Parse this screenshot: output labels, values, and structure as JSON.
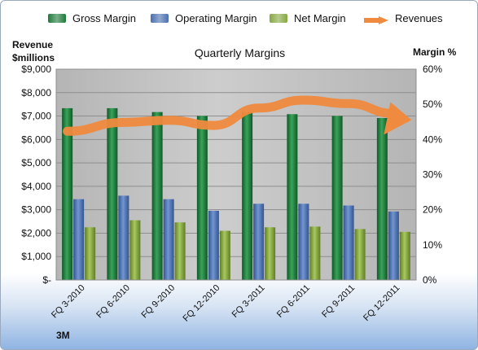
{
  "chart_data": {
    "type": "bar",
    "title": "Quarterly Margins",
    "categories": [
      "FQ 3-2010",
      "FQ 6-2010",
      "FQ 9-2010",
      "FQ 12-2010",
      "FQ 3-2011",
      "FQ 6-2011",
      "FQ 9-2011",
      "FQ 12-2011"
    ],
    "series": [
      {
        "name": "Gross Margin",
        "axis": "right",
        "unit": "%",
        "values": [
          48.9,
          48.9,
          47.8,
          46.7,
          47.8,
          47.2,
          46.7,
          46.1
        ]
      },
      {
        "name": "Operating Margin",
        "axis": "right",
        "unit": "%",
        "values": [
          23.0,
          24.0,
          23.0,
          19.7,
          21.7,
          21.7,
          21.2,
          19.5
        ]
      },
      {
        "name": "Net Margin",
        "axis": "right",
        "unit": "%",
        "values": [
          15.0,
          17.0,
          16.4,
          14.0,
          15.0,
          15.2,
          14.5,
          13.7
        ]
      },
      {
        "name": "Revenues",
        "axis": "left",
        "unit": "$millions",
        "type": "line",
        "values": [
          6350,
          6730,
          6820,
          6600,
          7340,
          7680,
          7530,
          7110
        ]
      }
    ],
    "ylabel_left": "Revenue\n$millions",
    "ylabel_right": "Margin %",
    "ylim_left": [
      0,
      9000
    ],
    "ylim_right": [
      0,
      60
    ],
    "yticks_left": [
      "$-",
      "$1,000",
      "$2,000",
      "$3,000",
      "$4,000",
      "$5,000",
      "$6,000",
      "$7,000",
      "$8,000",
      "$9,000"
    ],
    "yticks_right": [
      "0%",
      "10%",
      "20%",
      "30%",
      "40%",
      "50%",
      "60%"
    ],
    "legend_position": "top",
    "grid": true,
    "footer": "3M",
    "colors": {
      "Gross Margin": "#1f7a3a",
      "Operating Margin": "#4a6fb0",
      "Net Margin": "#86a842",
      "Revenues": "#ef8a3e",
      "plot_background": "#c2c2c2"
    }
  }
}
